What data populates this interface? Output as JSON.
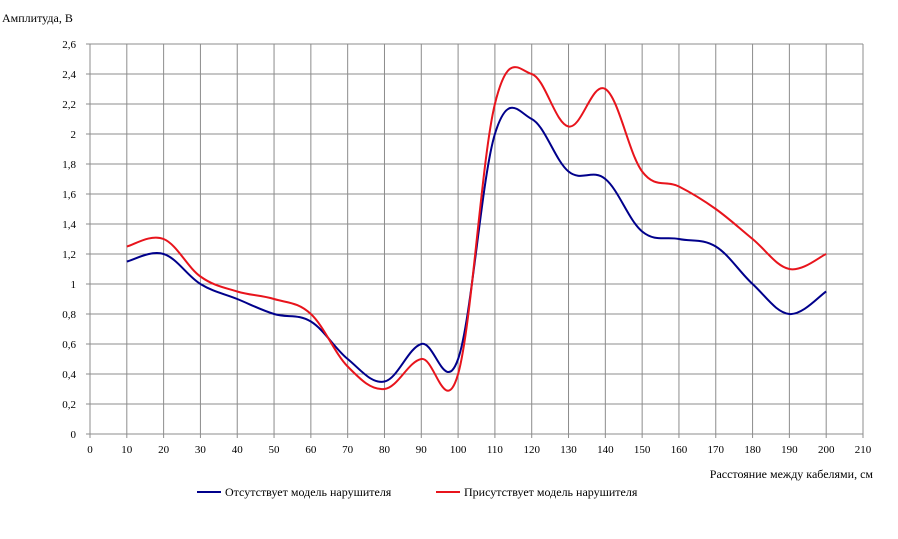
{
  "chart_data": {
    "type": "line",
    "ylabel": "Амплитуда, В",
    "xlabel": "Расстояние между кабелями, см",
    "xlim": [
      0,
      210
    ],
    "ylim": [
      0,
      2.6
    ],
    "x_ticks": [
      "0",
      "10",
      "20",
      "30",
      "40",
      "50",
      "60",
      "70",
      "80",
      "90",
      "100",
      "110",
      "120",
      "130",
      "140",
      "150",
      "160",
      "170",
      "180",
      "190",
      "200",
      "210"
    ],
    "y_ticks": [
      "0",
      "0,2",
      "0,4",
      "0,6",
      "0,8",
      "1",
      "1,2",
      "1,4",
      "1,6",
      "1,8",
      "2",
      "2,2",
      "2,4",
      "2,6"
    ],
    "grid": true,
    "legend_position": "bottom",
    "x": [
      10,
      20,
      30,
      40,
      50,
      60,
      70,
      80,
      90,
      100,
      110,
      120,
      130,
      140,
      150,
      160,
      170,
      180,
      190,
      200
    ],
    "series": [
      {
        "name": "Отсутствует модель нарушителя",
        "color": "#00008b",
        "values": [
          1.15,
          1.2,
          1.0,
          0.9,
          0.8,
          0.75,
          0.5,
          0.35,
          0.6,
          0.5,
          2.0,
          2.1,
          1.75,
          1.7,
          1.35,
          1.3,
          1.25,
          1.0,
          0.8,
          0.95
        ]
      },
      {
        "name": "Присутствует модель нарушителя",
        "color": "#e8141c",
        "values": [
          1.25,
          1.3,
          1.05,
          0.95,
          0.9,
          0.8,
          0.45,
          0.3,
          0.5,
          0.4,
          2.2,
          2.4,
          2.05,
          2.3,
          1.75,
          1.65,
          1.5,
          1.3,
          1.1,
          1.2
        ]
      }
    ]
  }
}
